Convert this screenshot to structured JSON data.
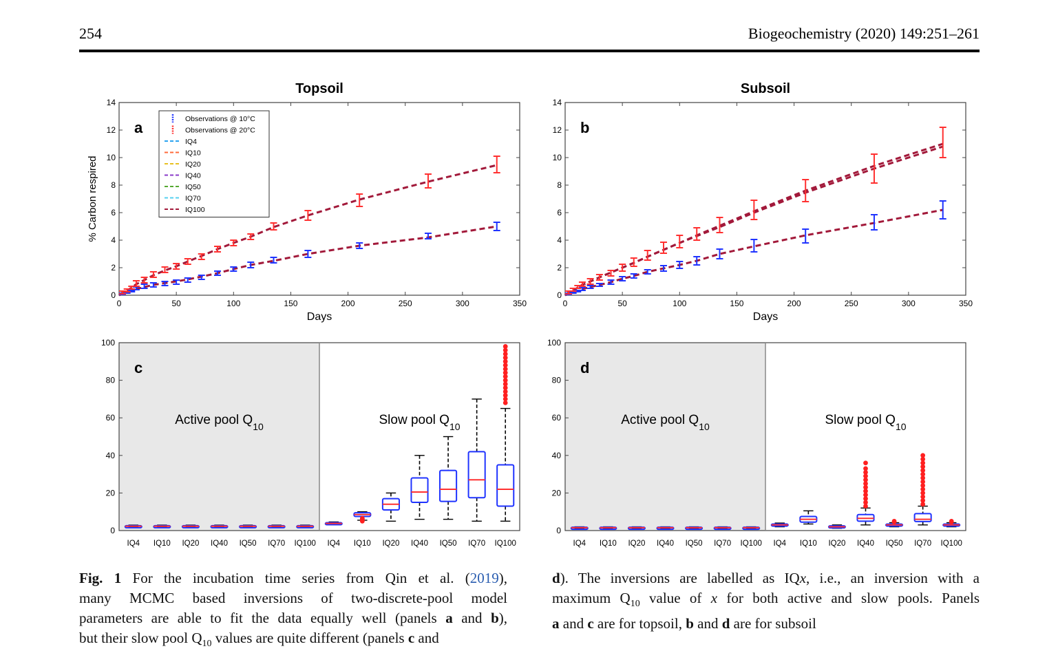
{
  "header": {
    "page_number": "254",
    "journal": "Biogeochemistry (2020) 149:251–261"
  },
  "caption": {
    "fig_label": "Fig. 1",
    "left_lines": [
      [
        {
          "t": "For the incubation time series from Qin et al. ("
        },
        {
          "t": "2019",
          "link": true
        },
        {
          "t": "),"
        }
      ],
      [
        {
          "t": "many MCMC based inversions of two-discrete-pool model"
        }
      ],
      [
        {
          "t": "parameters are able to fit the data equally well (panels "
        },
        {
          "t": "a",
          "b": true
        },
        {
          "t": " and "
        },
        {
          "t": "b",
          "b": true
        },
        {
          "t": "),"
        }
      ],
      [
        {
          "t": "but their slow pool Q"
        },
        {
          "t": "10",
          "sub": true
        },
        {
          "t": " values are quite different (panels "
        },
        {
          "t": "c",
          "b": true
        },
        {
          "t": " and"
        }
      ]
    ],
    "right_lines": [
      [
        {
          "t": "d",
          "b": true
        },
        {
          "t": "). The inversions are labelled as IQ"
        },
        {
          "t": "x",
          "i": true
        },
        {
          "t": ", i.e., an inversion with a"
        }
      ],
      [
        {
          "t": "maximum Q"
        },
        {
          "t": "10",
          "sub": true
        },
        {
          "t": " value of "
        },
        {
          "t": "x",
          "i": true
        },
        {
          "t": " for both active and slow pools. Panels"
        }
      ],
      [
        {
          "t": "a",
          "b": true
        },
        {
          "t": " and "
        },
        {
          "t": "c",
          "b": true
        },
        {
          "t": " are for topsoil, "
        },
        {
          "t": "b",
          "b": true
        },
        {
          "t": " and "
        },
        {
          "t": "d",
          "b": true
        },
        {
          "t": " are for subsoil"
        }
      ]
    ]
  },
  "colors": {
    "obs10": "#1f33ff",
    "obs20": "#ff3030",
    "IQ4": "#2aa3f0",
    "IQ10": "#ff6a3a",
    "IQ20": "#e8c020",
    "IQ40": "#8a3ac8",
    "IQ50": "#55a830",
    "IQ70": "#55d0f0",
    "IQ100": "#a2193a",
    "box": "#1f33ff",
    "median": "#ff3030",
    "outlier": "#ff2020",
    "shade": "#e8e8e8"
  },
  "chart_data": [
    {
      "id": "a",
      "type": "line",
      "title": "Topsoil",
      "panel_letter": "a",
      "xlabel": "Days",
      "ylabel": "% Carbon respired",
      "xlim": [
        0,
        350
      ],
      "ylim": [
        0,
        14
      ],
      "xticks": [
        0,
        50,
        100,
        150,
        200,
        250,
        300,
        350
      ],
      "yticks": [
        0,
        2,
        4,
        6,
        8,
        10,
        12,
        14
      ],
      "legend": [
        "Observations @ 10°C",
        "Observations @ 20°C",
        "IQ4",
        "IQ10",
        "IQ20",
        "IQ40",
        "IQ50",
        "IQ70",
        "IQ100"
      ],
      "series": [
        {
          "name": "Observations @ 10°C",
          "kind": "obs",
          "x": [
            3,
            7,
            11,
            15,
            22,
            30,
            40,
            50,
            60,
            72,
            86,
            100,
            115,
            135,
            165,
            210,
            270,
            330
          ],
          "y": [
            0.1,
            0.2,
            0.3,
            0.5,
            0.65,
            0.75,
            0.85,
            0.95,
            1.1,
            1.3,
            1.6,
            1.9,
            2.2,
            2.55,
            3.0,
            3.6,
            4.3,
            5.0
          ],
          "err": [
            0.05,
            0.05,
            0.05,
            0.1,
            0.15,
            0.15,
            0.15,
            0.15,
            0.15,
            0.15,
            0.15,
            0.15,
            0.2,
            0.2,
            0.25,
            0.2,
            0.2,
            0.3
          ]
        },
        {
          "name": "Observations @ 20°C",
          "kind": "obs",
          "x": [
            3,
            7,
            11,
            15,
            22,
            30,
            40,
            50,
            60,
            72,
            86,
            100,
            115,
            135,
            165,
            210,
            270,
            330
          ],
          "y": [
            0.2,
            0.35,
            0.55,
            0.85,
            1.1,
            1.5,
            1.85,
            2.1,
            2.45,
            2.8,
            3.35,
            3.8,
            4.25,
            5.0,
            5.8,
            6.9,
            8.3,
            9.5
          ],
          "err": [
            0.1,
            0.1,
            0.1,
            0.2,
            0.2,
            0.2,
            0.2,
            0.2,
            0.2,
            0.2,
            0.2,
            0.2,
            0.2,
            0.25,
            0.35,
            0.45,
            0.5,
            0.6
          ]
        },
        {
          "name": "IQ100 (10°C fit)",
          "kind": "fit",
          "x": [
            0,
            3,
            7,
            11,
            15,
            22,
            30,
            40,
            50,
            60,
            72,
            86,
            100,
            115,
            135,
            165,
            210,
            270,
            330
          ],
          "y": [
            0,
            0.1,
            0.2,
            0.3,
            0.45,
            0.6,
            0.75,
            0.88,
            1.0,
            1.15,
            1.35,
            1.6,
            1.9,
            2.2,
            2.5,
            3.0,
            3.6,
            4.2,
            5.0
          ]
        },
        {
          "name": "IQ100 (20°C fit)",
          "kind": "fit",
          "x": [
            0,
            3,
            7,
            11,
            15,
            22,
            30,
            40,
            50,
            60,
            72,
            86,
            100,
            115,
            135,
            165,
            210,
            270,
            330
          ],
          "y": [
            0,
            0.2,
            0.35,
            0.55,
            0.8,
            1.1,
            1.45,
            1.8,
            2.1,
            2.45,
            2.85,
            3.35,
            3.8,
            4.25,
            4.95,
            5.8,
            6.95,
            8.25,
            9.45
          ]
        }
      ]
    },
    {
      "id": "b",
      "type": "line",
      "title": "Subsoil",
      "panel_letter": "b",
      "xlabel": "Days",
      "ylabel": "",
      "xlim": [
        0,
        350
      ],
      "ylim": [
        0,
        14
      ],
      "xticks": [
        0,
        50,
        100,
        150,
        200,
        250,
        300,
        350
      ],
      "yticks": [
        0,
        2,
        4,
        6,
        8,
        10,
        12,
        14
      ],
      "series": [
        {
          "name": "Observations @ 10°C",
          "kind": "obs",
          "x": [
            3,
            7,
            11,
            15,
            22,
            30,
            40,
            50,
            60,
            72,
            86,
            100,
            115,
            135,
            165,
            210,
            270,
            330
          ],
          "y": [
            0.1,
            0.2,
            0.3,
            0.45,
            0.6,
            0.75,
            0.95,
            1.2,
            1.4,
            1.7,
            1.95,
            2.2,
            2.5,
            3.0,
            3.6,
            4.3,
            5.3,
            6.2
          ],
          "err": [
            0.05,
            0.05,
            0.05,
            0.1,
            0.1,
            0.1,
            0.15,
            0.15,
            0.15,
            0.15,
            0.2,
            0.25,
            0.3,
            0.35,
            0.45,
            0.5,
            0.55,
            0.65
          ]
        },
        {
          "name": "Observations @ 20°C",
          "kind": "obs",
          "x": [
            3,
            7,
            11,
            15,
            22,
            30,
            40,
            50,
            60,
            72,
            86,
            100,
            115,
            135,
            165,
            210,
            270,
            330
          ],
          "y": [
            0.2,
            0.4,
            0.6,
            0.8,
            1.0,
            1.3,
            1.6,
            2.0,
            2.4,
            2.9,
            3.45,
            3.9,
            4.45,
            5.1,
            6.2,
            7.6,
            9.2,
            11.1
          ],
          "err": [
            0.1,
            0.1,
            0.1,
            0.15,
            0.2,
            0.2,
            0.2,
            0.25,
            0.3,
            0.35,
            0.4,
            0.45,
            0.45,
            0.55,
            0.7,
            0.8,
            1.05,
            1.1
          ]
        },
        {
          "name": "IQ20 (20°C fit)",
          "kind": "fit",
          "x": [
            0,
            3,
            7,
            11,
            15,
            22,
            30,
            40,
            50,
            60,
            72,
            86,
            100,
            115,
            135,
            165,
            210,
            270,
            330
          ],
          "y": [
            0,
            0.2,
            0.35,
            0.55,
            0.75,
            1.0,
            1.3,
            1.65,
            2.0,
            2.35,
            2.8,
            3.3,
            3.8,
            4.35,
            5.05,
            6.1,
            7.6,
            9.4,
            11.0
          ]
        },
        {
          "name": "IQ100 (20°C fit)",
          "kind": "fit",
          "x": [
            0,
            3,
            7,
            11,
            15,
            22,
            30,
            40,
            50,
            60,
            72,
            86,
            100,
            115,
            135,
            165,
            210,
            270,
            330
          ],
          "y": [
            0,
            0.2,
            0.35,
            0.55,
            0.75,
            1.0,
            1.3,
            1.65,
            2.0,
            2.35,
            2.8,
            3.3,
            3.8,
            4.3,
            4.95,
            6.0,
            7.45,
            9.2,
            10.8
          ]
        },
        {
          "name": "IQ100 (10°C fit)",
          "kind": "fit",
          "x": [
            0,
            3,
            7,
            11,
            15,
            22,
            30,
            40,
            50,
            60,
            72,
            86,
            100,
            115,
            135,
            165,
            210,
            270,
            330
          ],
          "y": [
            0,
            0.1,
            0.2,
            0.3,
            0.45,
            0.6,
            0.75,
            0.95,
            1.2,
            1.4,
            1.7,
            1.95,
            2.2,
            2.5,
            3.0,
            3.55,
            4.35,
            5.25,
            6.2
          ]
        }
      ]
    },
    {
      "id": "c",
      "type": "box",
      "panel_letter": "c",
      "ylim": [
        0,
        100
      ],
      "yticks": [
        0,
        20,
        40,
        60,
        80,
        100
      ],
      "categories": [
        "IQ4",
        "IQ10",
        "IQ20",
        "IQ40",
        "IQ50",
        "IQ70",
        "IQ100",
        "IQ4",
        "IQ10",
        "IQ20",
        "IQ40",
        "IQ50",
        "IQ70",
        "IQ100"
      ],
      "shaded_count": 7,
      "group_labels": [
        {
          "text": "Active pool Q",
          "sub": "10"
        },
        {
          "text": "Slow pool Q",
          "sub": "10"
        }
      ],
      "boxes": [
        {
          "min": 1.8,
          "q1": 2.0,
          "med": 2.3,
          "q3": 2.6,
          "max": 2.9,
          "outliers": []
        },
        {
          "min": 1.8,
          "q1": 2.0,
          "med": 2.3,
          "q3": 2.6,
          "max": 2.9,
          "outliers": []
        },
        {
          "min": 1.8,
          "q1": 2.0,
          "med": 2.3,
          "q3": 2.6,
          "max": 2.9,
          "outliers": []
        },
        {
          "min": 1.8,
          "q1": 2.0,
          "med": 2.3,
          "q3": 2.6,
          "max": 2.9,
          "outliers": []
        },
        {
          "min": 1.8,
          "q1": 2.0,
          "med": 2.3,
          "q3": 2.6,
          "max": 2.9,
          "outliers": []
        },
        {
          "min": 1.8,
          "q1": 2.0,
          "med": 2.3,
          "q3": 2.6,
          "max": 2.9,
          "outliers": []
        },
        {
          "min": 1.8,
          "q1": 2.0,
          "med": 2.3,
          "q3": 2.6,
          "max": 2.9,
          "outliers": []
        },
        {
          "min": 3.0,
          "q1": 3.4,
          "med": 3.8,
          "q3": 4.2,
          "max": 4.6,
          "outliers": []
        },
        {
          "min": 5.5,
          "q1": 7.5,
          "med": 8.5,
          "q3": 9.5,
          "max": 10.0,
          "outliers": [
            5.0,
            5.5,
            6.0,
            6.5
          ]
        },
        {
          "min": 5.0,
          "q1": 11.0,
          "med": 14.0,
          "q3": 17.0,
          "max": 20.0,
          "outliers": []
        },
        {
          "min": 6.0,
          "q1": 15.0,
          "med": 20.5,
          "q3": 28.0,
          "max": 40.0,
          "outliers": []
        },
        {
          "min": 6.0,
          "q1": 15.5,
          "med": 22.0,
          "q3": 32.0,
          "max": 50.0,
          "outliers": []
        },
        {
          "min": 5.0,
          "q1": 17.5,
          "med": 27.0,
          "q3": 42.0,
          "max": 70.0,
          "outliers": []
        },
        {
          "min": 5.0,
          "q1": 13.0,
          "med": 22.0,
          "q3": 35.0,
          "max": 65.0,
          "outliers": [
            68,
            70,
            72,
            74,
            76,
            78,
            80,
            82,
            84,
            86,
            88,
            90,
            92,
            94,
            96,
            98
          ]
        }
      ]
    },
    {
      "id": "d",
      "type": "box",
      "panel_letter": "d",
      "ylim": [
        0,
        100
      ],
      "yticks": [
        0,
        20,
        40,
        60,
        80,
        100
      ],
      "categories": [
        "IQ4",
        "IQ10",
        "IQ20",
        "IQ40",
        "IQ50",
        "IQ70",
        "IQ100",
        "IQ4",
        "IQ10",
        "IQ20",
        "IQ40",
        "IQ50",
        "IQ70",
        "IQ100"
      ],
      "shaded_count": 7,
      "group_labels": [
        {
          "text": "Active pool Q",
          "sub": "10"
        },
        {
          "text": "Slow pool Q",
          "sub": "10"
        }
      ],
      "boxes": [
        {
          "min": 1.1,
          "q1": 1.3,
          "med": 1.5,
          "q3": 1.8,
          "max": 2.0,
          "outliers": []
        },
        {
          "min": 1.1,
          "q1": 1.3,
          "med": 1.5,
          "q3": 1.8,
          "max": 2.0,
          "outliers": []
        },
        {
          "min": 1.1,
          "q1": 1.3,
          "med": 1.5,
          "q3": 1.8,
          "max": 2.0,
          "outliers": []
        },
        {
          "min": 1.1,
          "q1": 1.3,
          "med": 1.5,
          "q3": 1.8,
          "max": 2.0,
          "outliers": []
        },
        {
          "min": 1.1,
          "q1": 1.3,
          "med": 1.5,
          "q3": 1.8,
          "max": 2.0,
          "outliers": []
        },
        {
          "min": 1.1,
          "q1": 1.3,
          "med": 1.5,
          "q3": 1.8,
          "max": 2.0,
          "outliers": []
        },
        {
          "min": 1.1,
          "q1": 1.3,
          "med": 1.5,
          "q3": 1.8,
          "max": 2.0,
          "outliers": []
        },
        {
          "min": 2.0,
          "q1": 2.6,
          "med": 3.0,
          "q3": 3.5,
          "max": 4.0,
          "outliers": []
        },
        {
          "min": 3.5,
          "q1": 4.5,
          "med": 6.0,
          "q3": 7.5,
          "max": 10.5,
          "outliers": []
        },
        {
          "min": 1.2,
          "q1": 1.6,
          "med": 2.0,
          "q3": 2.5,
          "max": 3.0,
          "outliers": []
        },
        {
          "min": 3.0,
          "q1": 5.0,
          "med": 6.5,
          "q3": 8.5,
          "max": 12.0,
          "outliers": [
            13,
            15,
            17,
            19,
            21,
            23,
            25,
            27,
            29,
            31,
            33,
            36
          ]
        },
        {
          "min": 2.0,
          "q1": 2.5,
          "med": 3.0,
          "q3": 3.5,
          "max": 4.2,
          "outliers": [
            4.6,
            5.0
          ]
        },
        {
          "min": 3.0,
          "q1": 4.8,
          "med": 6.0,
          "q3": 9.0,
          "max": 13.0,
          "outliers": [
            14,
            16,
            18,
            20,
            22,
            24,
            26,
            28,
            30,
            32,
            34,
            36,
            38,
            40
          ]
        },
        {
          "min": 2.0,
          "q1": 2.6,
          "med": 3.0,
          "q3": 3.5,
          "max": 4.2,
          "outliers": [
            4.6,
            5.0
          ]
        }
      ]
    }
  ]
}
